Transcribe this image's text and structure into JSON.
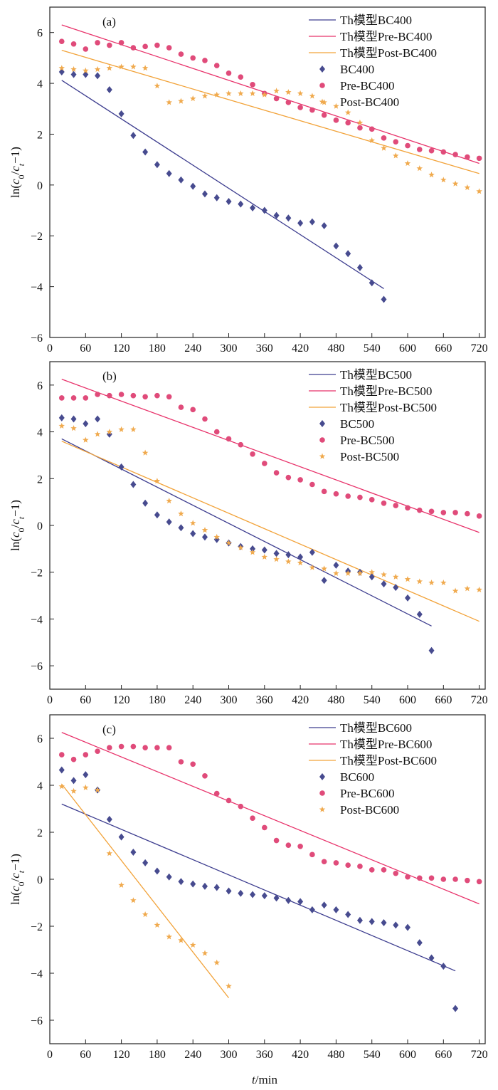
{
  "figure": {
    "xlabel_italic": "t",
    "xlabel_rest": "/min",
    "ylabel_prefix": "ln(",
    "ylabel_c0_base": "c",
    "ylabel_c0_sub": "0",
    "ylabel_slash": "/",
    "ylabel_ct_base": "c",
    "ylabel_ct_sub": "t",
    "ylabel_suffix": "−1)"
  },
  "chart_data": [
    {
      "type": "scatter",
      "panel_label": "(a)",
      "xlim": [
        0,
        730
      ],
      "ylim": [
        -6,
        7
      ],
      "xticks": [
        0,
        60,
        120,
        180,
        240,
        300,
        360,
        420,
        480,
        540,
        600,
        660,
        720
      ],
      "yticks": [
        -6,
        -4,
        -2,
        0,
        2,
        4,
        6
      ],
      "grid": false,
      "legend_position": "top-right",
      "lines": [
        {
          "name": "Th模型BC400",
          "color": "#3d3d8f",
          "x": [
            20,
            560
          ],
          "y": [
            4.12,
            -4.08
          ]
        },
        {
          "name": "Th模型Pre-BC400",
          "color": "#e8336b",
          "x": [
            20,
            720
          ],
          "y": [
            6.3,
            0.85
          ]
        },
        {
          "name": "Th模型Post-BC400",
          "color": "#f2a33a",
          "x": [
            20,
            720
          ],
          "y": [
            5.3,
            0.45
          ]
        }
      ],
      "series": [
        {
          "name": "BC400",
          "marker": "diamond",
          "color": "#474b8f",
          "x": [
            20,
            40,
            60,
            80,
            100,
            120,
            140,
            160,
            180,
            200,
            220,
            240,
            260,
            280,
            300,
            320,
            340,
            360,
            380,
            400,
            420,
            440,
            460,
            480,
            500,
            520,
            540,
            560
          ],
          "y": [
            4.45,
            4.35,
            4.35,
            4.3,
            3.75,
            2.8,
            1.95,
            1.3,
            0.8,
            0.45,
            0.2,
            -0.05,
            -0.35,
            -0.5,
            -0.65,
            -0.75,
            -0.9,
            -1.0,
            -1.2,
            -1.3,
            -1.5,
            -1.45,
            -1.6,
            -2.4,
            -2.7,
            -3.25,
            -3.85,
            -4.5
          ]
        },
        {
          "name": "Pre-BC400",
          "marker": "circle",
          "color": "#e04b7a",
          "x": [
            20,
            40,
            60,
            80,
            100,
            120,
            140,
            160,
            180,
            200,
            220,
            240,
            260,
            280,
            300,
            320,
            340,
            360,
            380,
            400,
            420,
            440,
            460,
            480,
            500,
            520,
            540,
            560,
            580,
            600,
            620,
            640,
            660,
            680,
            700,
            720
          ],
          "y": [
            5.65,
            5.55,
            5.35,
            5.6,
            5.5,
            5.6,
            5.4,
            5.45,
            5.5,
            5.4,
            5.15,
            5.0,
            4.9,
            4.7,
            4.4,
            4.25,
            3.95,
            3.6,
            3.4,
            3.25,
            3.05,
            2.95,
            2.75,
            2.55,
            2.45,
            2.25,
            2.2,
            1.85,
            1.7,
            1.55,
            1.4,
            1.35,
            1.3,
            1.2,
            1.1,
            1.05
          ]
        },
        {
          "name": "Post-BC400",
          "marker": "star",
          "color": "#f0aa4e",
          "x": [
            20,
            40,
            60,
            80,
            100,
            120,
            140,
            160,
            180,
            200,
            220,
            240,
            260,
            280,
            300,
            320,
            340,
            360,
            380,
            400,
            420,
            440,
            460,
            480,
            500,
            520,
            540,
            560,
            580,
            600,
            620,
            640,
            660,
            680,
            700,
            720
          ],
          "y": [
            4.6,
            4.55,
            4.5,
            4.55,
            4.6,
            4.65,
            4.65,
            4.6,
            3.9,
            3.25,
            3.3,
            3.4,
            3.5,
            3.55,
            3.6,
            3.6,
            3.6,
            3.55,
            3.7,
            3.65,
            3.6,
            3.5,
            3.25,
            3.1,
            2.85,
            2.45,
            1.75,
            1.45,
            1.15,
            0.85,
            0.65,
            0.4,
            0.2,
            0.05,
            -0.1,
            -0.25
          ]
        }
      ]
    },
    {
      "type": "scatter",
      "panel_label": "(b)",
      "xlim": [
        0,
        730
      ],
      "ylim": [
        -7,
        7
      ],
      "xticks": [
        0,
        60,
        120,
        180,
        240,
        300,
        360,
        420,
        480,
        540,
        600,
        660,
        720
      ],
      "yticks": [
        -6,
        -4,
        -2,
        0,
        2,
        4,
        6
      ],
      "grid": false,
      "legend_position": "top-right",
      "lines": [
        {
          "name": "Th模型BC500",
          "color": "#3d3d8f",
          "x": [
            20,
            640
          ],
          "y": [
            3.7,
            -4.3
          ]
        },
        {
          "name": "Th模型Pre-BC500",
          "color": "#e8336b",
          "x": [
            20,
            720
          ],
          "y": [
            6.25,
            -0.3
          ]
        },
        {
          "name": "Th模型Post-BC500",
          "color": "#f2a33a",
          "x": [
            20,
            720
          ],
          "y": [
            3.6,
            -4.1
          ]
        }
      ],
      "series": [
        {
          "name": "BC500",
          "marker": "diamond",
          "color": "#474b8f",
          "x": [
            20,
            40,
            60,
            80,
            100,
            120,
            140,
            160,
            180,
            200,
            220,
            240,
            260,
            280,
            300,
            320,
            340,
            360,
            380,
            400,
            420,
            440,
            460,
            480,
            500,
            520,
            540,
            560,
            580,
            600,
            620,
            640
          ],
          "y": [
            4.6,
            4.55,
            4.35,
            4.55,
            3.9,
            2.5,
            1.75,
            0.95,
            0.45,
            0.15,
            -0.1,
            -0.35,
            -0.5,
            -0.6,
            -0.75,
            -0.9,
            -1.0,
            -1.05,
            -1.2,
            -1.25,
            -1.35,
            -1.15,
            -2.35,
            -1.7,
            -1.95,
            -2.0,
            -2.2,
            -2.5,
            -2.65,
            -3.1,
            -3.8,
            -5.35
          ]
        },
        {
          "name": "Pre-BC500",
          "marker": "circle",
          "color": "#e04b7a",
          "x": [
            20,
            40,
            60,
            80,
            100,
            120,
            140,
            160,
            180,
            200,
            220,
            240,
            260,
            280,
            300,
            320,
            340,
            360,
            380,
            400,
            420,
            440,
            460,
            480,
            500,
            520,
            540,
            560,
            580,
            600,
            620,
            640,
            660,
            680,
            700,
            720
          ],
          "y": [
            5.45,
            5.45,
            5.45,
            5.6,
            5.55,
            5.6,
            5.55,
            5.5,
            5.55,
            5.5,
            5.05,
            4.95,
            4.55,
            4.0,
            3.7,
            3.45,
            3.05,
            2.65,
            2.25,
            2.05,
            1.95,
            1.75,
            1.45,
            1.35,
            1.25,
            1.2,
            1.1,
            0.95,
            0.85,
            0.75,
            0.65,
            0.6,
            0.55,
            0.55,
            0.5,
            0.4
          ]
        },
        {
          "name": "Post-BC500",
          "marker": "star",
          "color": "#f0aa4e",
          "x": [
            20,
            40,
            60,
            80,
            100,
            120,
            140,
            160,
            180,
            200,
            220,
            240,
            260,
            280,
            300,
            320,
            340,
            360,
            380,
            400,
            420,
            440,
            460,
            480,
            500,
            520,
            540,
            560,
            580,
            600,
            620,
            640,
            660,
            680,
            700,
            720
          ],
          "y": [
            4.25,
            4.15,
            3.65,
            3.9,
            4.0,
            4.1,
            4.1,
            3.1,
            1.9,
            1.05,
            0.5,
            0.1,
            -0.2,
            -0.5,
            -0.75,
            -0.95,
            -1.15,
            -1.35,
            -1.45,
            -1.55,
            -1.6,
            -1.8,
            -1.85,
            -2.05,
            -2.05,
            -2.05,
            -2.0,
            -2.1,
            -2.2,
            -2.3,
            -2.4,
            -2.45,
            -2.45,
            -2.8,
            -2.7,
            -2.75
          ]
        }
      ]
    },
    {
      "type": "scatter",
      "panel_label": "(c)",
      "xlim": [
        0,
        730
      ],
      "ylim": [
        -7,
        7
      ],
      "xticks": [
        0,
        60,
        120,
        180,
        240,
        300,
        360,
        420,
        480,
        540,
        600,
        660,
        720
      ],
      "yticks": [
        -6,
        -4,
        -2,
        0,
        2,
        4,
        6
      ],
      "grid": false,
      "legend_position": "top-right",
      "lines": [
        {
          "name": "Th模型BC600",
          "color": "#3d3d8f",
          "x": [
            20,
            680
          ],
          "y": [
            3.2,
            -3.9
          ]
        },
        {
          "name": "Th模型Pre-BC600",
          "color": "#e8336b",
          "x": [
            20,
            720
          ],
          "y": [
            6.25,
            -1.05
          ]
        },
        {
          "name": "Th模型Post-BC600",
          "color": "#f2a33a",
          "x": [
            20,
            300
          ],
          "y": [
            4.05,
            -5.05
          ]
        }
      ],
      "series": [
        {
          "name": "BC600",
          "marker": "diamond",
          "color": "#474b8f",
          "x": [
            20,
            40,
            60,
            80,
            100,
            120,
            140,
            160,
            180,
            200,
            220,
            240,
            260,
            280,
            300,
            320,
            340,
            360,
            380,
            400,
            420,
            440,
            460,
            480,
            500,
            520,
            540,
            560,
            580,
            600,
            620,
            640,
            660,
            680
          ],
          "y": [
            4.65,
            4.2,
            4.45,
            3.8,
            2.55,
            1.8,
            1.15,
            0.7,
            0.35,
            0.1,
            -0.1,
            -0.2,
            -0.3,
            -0.35,
            -0.5,
            -0.6,
            -0.65,
            -0.7,
            -0.8,
            -0.9,
            -0.95,
            -1.3,
            -1.1,
            -1.3,
            -1.5,
            -1.75,
            -1.8,
            -1.85,
            -1.95,
            -2.05,
            -2.7,
            -3.35,
            -3.7,
            -5.5
          ]
        },
        {
          "name": "Pre-BC600",
          "marker": "circle",
          "color": "#e04b7a",
          "x": [
            20,
            40,
            60,
            80,
            100,
            120,
            140,
            160,
            180,
            200,
            220,
            240,
            260,
            280,
            300,
            320,
            340,
            360,
            380,
            400,
            420,
            440,
            460,
            480,
            500,
            520,
            540,
            560,
            580,
            600,
            620,
            640,
            660,
            680,
            700,
            720
          ],
          "y": [
            5.3,
            5.1,
            5.3,
            5.45,
            5.6,
            5.65,
            5.65,
            5.6,
            5.6,
            5.6,
            5.0,
            4.9,
            4.4,
            3.65,
            3.35,
            3.1,
            2.6,
            2.2,
            1.65,
            1.45,
            1.4,
            1.05,
            0.75,
            0.7,
            0.6,
            0.55,
            0.4,
            0.4,
            0.25,
            0.1,
            0.05,
            0.05,
            0.0,
            0.0,
            -0.05,
            -0.1
          ]
        },
        {
          "name": "Post-BC600",
          "marker": "star",
          "color": "#f0aa4e",
          "x": [
            20,
            40,
            60,
            80,
            100,
            120,
            140,
            160,
            180,
            200,
            220,
            240,
            260,
            280,
            300
          ],
          "y": [
            3.95,
            3.75,
            3.9,
            3.8,
            1.1,
            -0.25,
            -0.9,
            -1.5,
            -1.95,
            -2.45,
            -2.6,
            -2.8,
            -3.15,
            -3.55,
            -4.55
          ]
        }
      ]
    }
  ]
}
